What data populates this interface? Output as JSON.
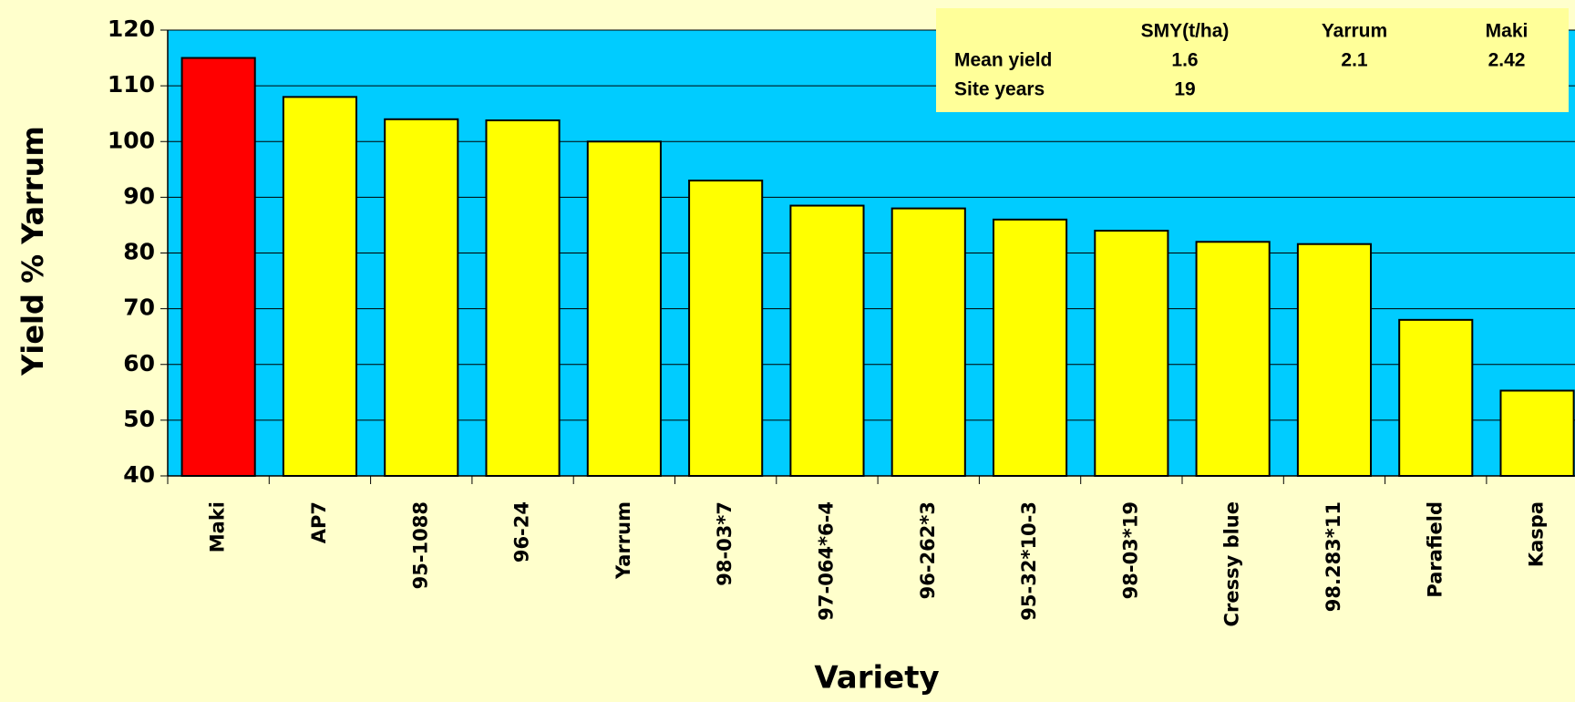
{
  "chart_data": {
    "type": "bar",
    "categories": [
      "Maki",
      "AP7",
      "95-1088",
      "96-24",
      "Yarrum",
      "98-03*7",
      "97-064*6-4",
      "96-262*3",
      "95-32*10-3",
      "98-03*19",
      "Cressy blue",
      "98.283*11",
      "Parafield",
      "Kaspa"
    ],
    "values": [
      115,
      108,
      104,
      103.8,
      100,
      93,
      88.5,
      88,
      86,
      84,
      82,
      81.6,
      68,
      55.3
    ],
    "colors": [
      "#ff0000",
      "#ffff00",
      "#ffff00",
      "#ffff00",
      "#ffff00",
      "#ffff00",
      "#ffff00",
      "#ffff00",
      "#ffff00",
      "#ffff00",
      "#ffff00",
      "#ffff00",
      "#ffff00",
      "#ffff00"
    ],
    "ylim": [
      40,
      120
    ],
    "yticks": [
      40,
      50,
      60,
      70,
      80,
      90,
      100,
      110,
      120
    ],
    "grid": true,
    "xlabel": "Variety",
    "ylabel": "Yield % Yarrum",
    "table": {
      "columns": [
        "SMY(t/ha)",
        "Yarrum",
        "Maki"
      ],
      "rows": [
        [
          "Mean yield",
          1.6,
          2.1,
          2.42
        ],
        [
          "Site years",
          19
        ]
      ]
    }
  }
}
